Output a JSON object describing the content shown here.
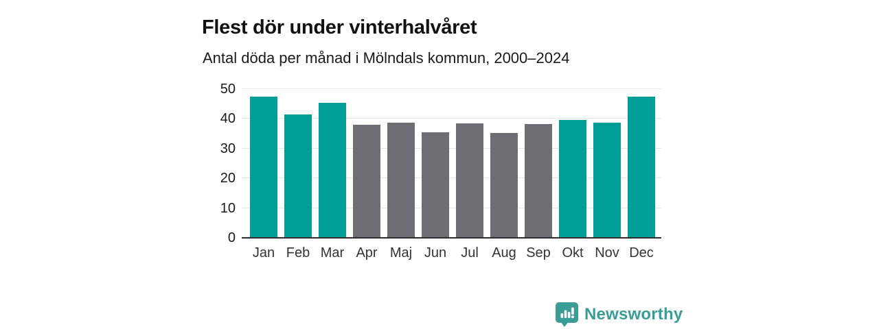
{
  "header": {
    "title": "Flest dör under vinterhalvåret",
    "subtitle": "Antal döda per månad i Mölndals kommun, 2000–2024"
  },
  "chart_data": {
    "type": "bar",
    "title": "Flest dör under vinterhalvåret",
    "subtitle": "Antal döda per månad i Mölndals kommun, 2000–2024",
    "categories": [
      "Jan",
      "Feb",
      "Mar",
      "Apr",
      "Maj",
      "Jun",
      "Jul",
      "Aug",
      "Sep",
      "Okt",
      "Nov",
      "Dec"
    ],
    "values": [
      47.5,
      41.4,
      45.4,
      38.0,
      38.6,
      35.5,
      38.4,
      35.3,
      38.3,
      39.7,
      38.8,
      47.5
    ],
    "bar_groups": [
      "winter",
      "winter",
      "winter",
      "summer",
      "summer",
      "summer",
      "summer",
      "summer",
      "summer",
      "winter",
      "winter",
      "winter"
    ],
    "palette": {
      "winter": "#009e96",
      "summer": "#6e6d73"
    },
    "xlabel": "",
    "ylabel": "",
    "ylim": [
      0,
      50
    ],
    "yticks": [
      0,
      10,
      20,
      30,
      40,
      50
    ],
    "grid": true,
    "legend": false
  },
  "footer": {
    "brand": "Newsworthy",
    "brand_color": "#3b9e96",
    "logo_icon": "chart-bars-speech-bubble-icon"
  },
  "colors": {
    "background": "#ffffff",
    "title": "#111111",
    "subtitle": "#1a1a1a",
    "axis_line": "#2e2e2e",
    "gridline": "#e8e8e8",
    "tick_label": "#1a1a1a",
    "month_label": "#333333"
  }
}
